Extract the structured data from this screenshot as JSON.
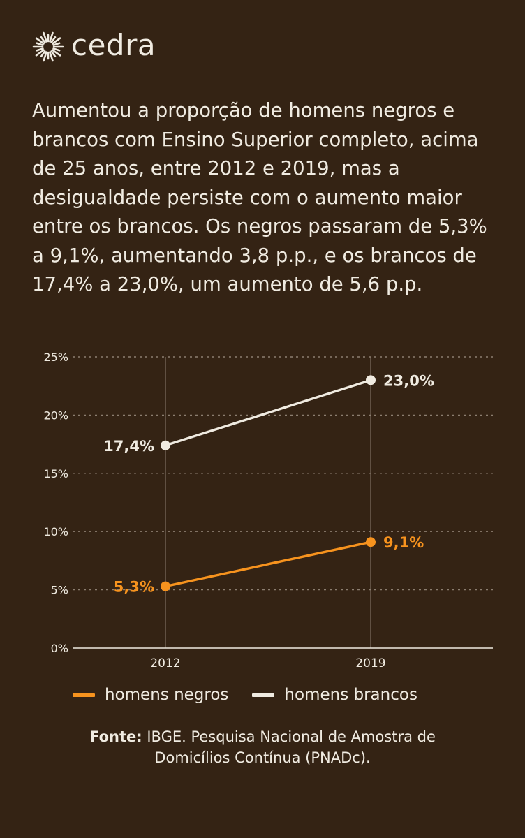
{
  "brand": {
    "name": "cedra",
    "logo_icon": "sunburst-icon"
  },
  "intro_text": "Aumentou a proporção de homens negros e brancos com Ensino Superior completo, acima de 25 anos, entre 2012 e 2019, mas a desigualdade persiste com o aumento maior entre os brancos. Os negros passaram de 5,3% a 9,1%, aumentando 3,8 p.p., e os brancos de 17,4% a 23,0%, um aumento de 5,6 p.p.",
  "chart_data": {
    "type": "line",
    "title": "",
    "xlabel": "",
    "ylabel": "",
    "x": [
      "2012",
      "2019"
    ],
    "ylim": [
      0,
      25
    ],
    "yticks": [
      0,
      5,
      10,
      15,
      20,
      25
    ],
    "ytick_labels": [
      "0%",
      "5%",
      "10%",
      "15%",
      "20%",
      "25%"
    ],
    "grid": "horizontal dotted",
    "legend_position": "bottom",
    "series": [
      {
        "name": "homens negros",
        "values": [
          5.3,
          9.1
        ],
        "labels": [
          "5,3%",
          "9,1%"
        ],
        "color": "#f7931e"
      },
      {
        "name": "homens brancos",
        "values": [
          17.4,
          23.0
        ],
        "labels": [
          "17,4%",
          "23,0%"
        ],
        "color": "#f0ebe1"
      }
    ]
  },
  "source": {
    "label": "Fonte:",
    "text": "IBGE. Pesquisa Nacional de Amostra de Domicílios Contínua (PNADc)."
  },
  "colors": {
    "background": "#342314",
    "text": "#f0ebe1",
    "accent": "#f7931e",
    "grid": "#8c7e70"
  }
}
